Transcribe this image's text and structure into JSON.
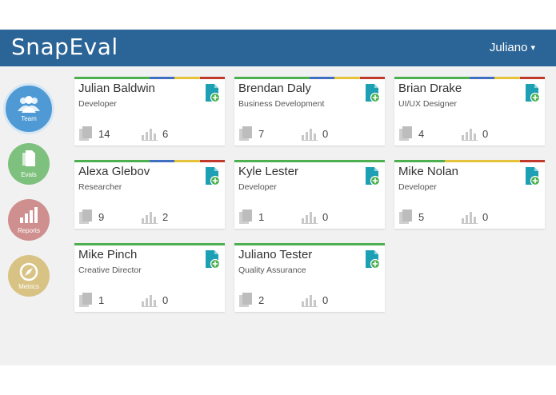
{
  "app": {
    "logo_text": "SnapEval"
  },
  "header": {
    "user_name": "Juliano",
    "chevron": "▾"
  },
  "nav": [
    {
      "label": "Team",
      "icon": "team-icon",
      "color": "#4f9ad4"
    },
    {
      "label": "Evals",
      "icon": "evals-icon",
      "color": "#7ec17e"
    },
    {
      "label": "Reports",
      "icon": "reports-icon",
      "color": "#cf8f8f"
    },
    {
      "label": "Metrics",
      "icon": "metrics-icon",
      "color": "#d8c384"
    }
  ],
  "colors": {
    "header": "#2b6496",
    "green": "#4caf50",
    "blue": "#3f6fc1",
    "yellow": "#e6c23a",
    "red": "#c0392b",
    "teal_doc": "#1ea0b4"
  },
  "cards": [
    {
      "name": "Julian Baldwin",
      "role": "Developer",
      "evals": "14",
      "reports": "6",
      "stripe": [
        "green",
        "green",
        "green",
        "blue",
        "yellow",
        "red"
      ]
    },
    {
      "name": "Brendan Daly",
      "role": "Business Development",
      "evals": "7",
      "reports": "0",
      "stripe": [
        "green",
        "green",
        "green",
        "blue",
        "yellow",
        "red"
      ]
    },
    {
      "name": "Brian Drake",
      "role": "UI/UX Designer",
      "evals": "4",
      "reports": "0",
      "stripe": [
        "green",
        "green",
        "green",
        "blue",
        "yellow",
        "red"
      ]
    },
    {
      "name": "Alexa Glebov",
      "role": "Researcher",
      "evals": "9",
      "reports": "2",
      "stripe": [
        "green",
        "green",
        "green",
        "blue",
        "yellow",
        "red"
      ]
    },
    {
      "name": "Kyle Lester",
      "role": "Developer",
      "evals": "1",
      "reports": "0",
      "stripe": [
        "green",
        "green",
        "green",
        "green",
        "green",
        "green"
      ]
    },
    {
      "name": "Mike Nolan",
      "role": "Developer",
      "evals": "5",
      "reports": "0",
      "stripe": [
        "green",
        "green",
        "yellow",
        "yellow",
        "yellow",
        "red"
      ]
    },
    {
      "name": "Mike Pinch",
      "role": "Creative Director",
      "evals": "1",
      "reports": "0",
      "stripe": [
        "green",
        "green",
        "green",
        "green",
        "green",
        "green"
      ]
    },
    {
      "name": "Juliano Tester",
      "role": "Quality Assurance",
      "evals": "2",
      "reports": "0",
      "stripe": [
        "green",
        "green",
        "green",
        "green",
        "green",
        "green"
      ]
    }
  ]
}
